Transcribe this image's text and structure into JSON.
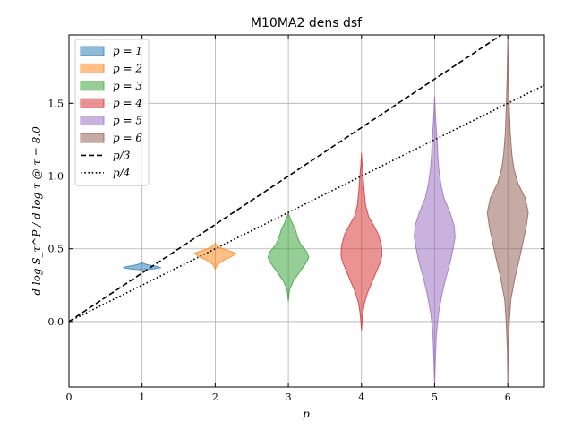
{
  "chart_data": {
    "type": "violin",
    "title": "M10MA2 dens dsf",
    "xlabel": "p",
    "ylabel": "d log S_τ^P / d log τ @ τ = 8.0",
    "xlim": [
      0,
      6.5
    ],
    "ylim": [
      -0.45,
      1.97
    ],
    "xticks": [
      0,
      1,
      2,
      3,
      4,
      5,
      6
    ],
    "yticks": [
      0.0,
      0.5,
      1.0,
      1.5
    ],
    "xtick_labels": [
      "0",
      "1",
      "2",
      "3",
      "4",
      "5",
      "6"
    ],
    "ytick_labels": [
      "0.0",
      "0.5",
      "1.0",
      "1.5"
    ],
    "grid": true,
    "legend_position": "top-left",
    "series": [
      {
        "name": "p = 1",
        "position": 1,
        "color": "#1f77b4",
        "profile": [
          [
            0.355,
            0.0
          ],
          [
            0.362,
            0.6
          ],
          [
            0.37,
            0.9
          ],
          [
            0.378,
            0.75
          ],
          [
            0.386,
            0.4
          ],
          [
            0.395,
            0.15
          ],
          [
            0.405,
            0.0
          ]
        ]
      },
      {
        "name": "p = 2",
        "position": 2,
        "color": "#ff7f0e",
        "profile": [
          [
            0.36,
            0.0
          ],
          [
            0.39,
            0.1
          ],
          [
            0.42,
            0.4
          ],
          [
            0.45,
            0.85
          ],
          [
            0.47,
            1.0
          ],
          [
            0.49,
            0.6
          ],
          [
            0.51,
            0.22
          ],
          [
            0.53,
            0.04
          ],
          [
            0.54,
            0.0
          ]
        ]
      },
      {
        "name": "p = 3",
        "position": 3,
        "color": "#2ca02c",
        "profile": [
          [
            0.14,
            0.0
          ],
          [
            0.22,
            0.06
          ],
          [
            0.28,
            0.25
          ],
          [
            0.32,
            0.45
          ],
          [
            0.36,
            0.65
          ],
          [
            0.4,
            0.85
          ],
          [
            0.44,
            1.0
          ],
          [
            0.48,
            0.9
          ],
          [
            0.53,
            0.6
          ],
          [
            0.58,
            0.45
          ],
          [
            0.63,
            0.35
          ],
          [
            0.68,
            0.18
          ],
          [
            0.72,
            0.06
          ],
          [
            0.75,
            0.0
          ]
        ]
      },
      {
        "name": "p = 4",
        "position": 4,
        "color": "#d62728",
        "profile": [
          [
            -0.06,
            0.0
          ],
          [
            0.05,
            0.06
          ],
          [
            0.13,
            0.15
          ],
          [
            0.2,
            0.3
          ],
          [
            0.3,
            0.6
          ],
          [
            0.4,
            0.9
          ],
          [
            0.45,
            1.0
          ],
          [
            0.52,
            0.98
          ],
          [
            0.6,
            0.82
          ],
          [
            0.66,
            0.6
          ],
          [
            0.72,
            0.35
          ],
          [
            0.8,
            0.2
          ],
          [
            0.9,
            0.13
          ],
          [
            1.0,
            0.08
          ],
          [
            1.1,
            0.02
          ],
          [
            1.16,
            0.0
          ]
        ]
      },
      {
        "name": "p = 5",
        "position": 5,
        "color": "#9467bd",
        "profile": [
          [
            -0.45,
            0.0
          ],
          [
            -0.3,
            0.03
          ],
          [
            -0.1,
            0.08
          ],
          [
            0.05,
            0.18
          ],
          [
            0.2,
            0.38
          ],
          [
            0.3,
            0.55
          ],
          [
            0.4,
            0.75
          ],
          [
            0.5,
            0.9
          ],
          [
            0.58,
            1.0
          ],
          [
            0.66,
            0.95
          ],
          [
            0.75,
            0.75
          ],
          [
            0.85,
            0.45
          ],
          [
            0.95,
            0.3
          ],
          [
            1.05,
            0.2
          ],
          [
            1.15,
            0.15
          ],
          [
            1.25,
            0.12
          ],
          [
            1.35,
            0.07
          ],
          [
            1.45,
            0.03
          ],
          [
            1.55,
            0.0
          ]
        ]
      },
      {
        "name": "p = 6",
        "position": 6,
        "color": "#8c564b",
        "profile": [
          [
            -0.45,
            0.0
          ],
          [
            -0.2,
            0.02
          ],
          [
            0.0,
            0.08
          ],
          [
            0.15,
            0.15
          ],
          [
            0.3,
            0.35
          ],
          [
            0.45,
            0.6
          ],
          [
            0.55,
            0.75
          ],
          [
            0.65,
            0.9
          ],
          [
            0.75,
            1.0
          ],
          [
            0.85,
            0.85
          ],
          [
            0.95,
            0.5
          ],
          [
            1.05,
            0.3
          ],
          [
            1.15,
            0.2
          ],
          [
            1.3,
            0.12
          ],
          [
            1.5,
            0.07
          ],
          [
            1.7,
            0.03
          ],
          [
            1.97,
            0.0
          ]
        ]
      }
    ],
    "lines": [
      {
        "name": "p/3",
        "style": "dashed",
        "slope": 0.3333
      },
      {
        "name": "p/4",
        "style": "dotted",
        "slope": 0.25
      }
    ]
  }
}
